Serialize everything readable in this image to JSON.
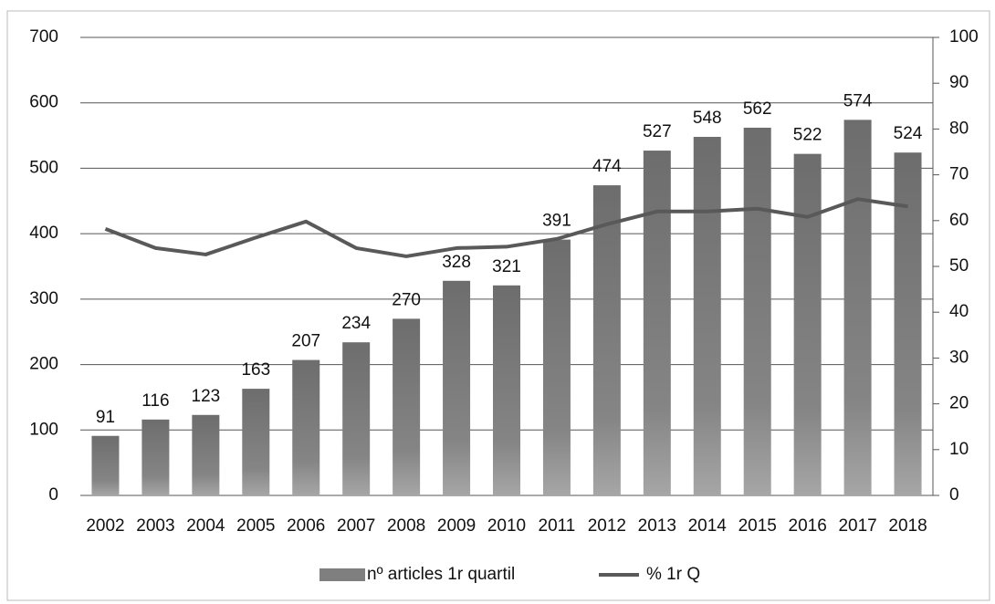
{
  "chart_data": {
    "type": "bar",
    "categories": [
      "2002",
      "2003",
      "2004",
      "2005",
      "2006",
      "2007",
      "2008",
      "2009",
      "2010",
      "2011",
      "2012",
      "2013",
      "2014",
      "2015",
      "2016",
      "2017",
      "2018"
    ],
    "series": [
      {
        "name": "nº articles 1r quartil",
        "type": "bar",
        "color": "#7f7f7f",
        "values": [
          91,
          116,
          123,
          163,
          207,
          234,
          270,
          328,
          321,
          391,
          474,
          527,
          548,
          562,
          522,
          574,
          524
        ]
      },
      {
        "name": "% 1r Q",
        "type": "line",
        "axis": "y2",
        "color": "#595959",
        "values": [
          58.2,
          54,
          52.6,
          56.3,
          59.8,
          54,
          52.2,
          54,
          54.3,
          56,
          59.2,
          62,
          62,
          62.6,
          60.8,
          64.7,
          63.1
        ]
      }
    ],
    "ylim": [
      0,
      700
    ],
    "yticks": [
      0,
      100,
      200,
      300,
      400,
      500,
      600,
      700
    ],
    "y2lim": [
      0,
      100
    ],
    "y2ticks": [
      0,
      10,
      20,
      30,
      40,
      50,
      60,
      70,
      80,
      90,
      100
    ],
    "grid": true,
    "legend": "bottom"
  }
}
